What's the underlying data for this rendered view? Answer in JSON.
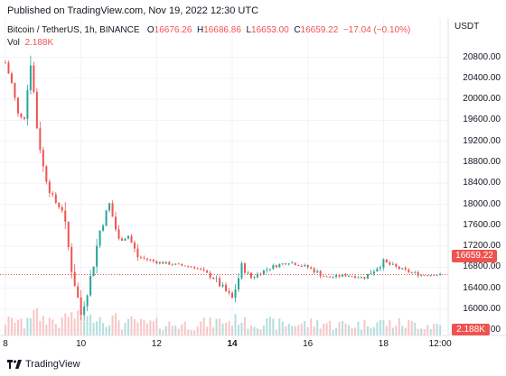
{
  "header": {
    "published": "Published on TradingView.com, Nov 19, 2022 12:30 UTC",
    "symbol": "Bitcoin / TetherUS, 1h, BINANCE",
    "o_label": "O",
    "o_value": "16676.26",
    "h_label": "H",
    "h_value": "16686.86",
    "l_label": "L",
    "l_value": "16653.00",
    "c_label": "C",
    "c_value": "16659.22",
    "change": "−17.04 (−0.10%)",
    "vol_label": "Vol",
    "vol_value": "2.188K"
  },
  "axis": {
    "currency": "USDT",
    "y_ticks": [
      "20800.00",
      "20400.00",
      "20000.00",
      "19600.00",
      "19200.00",
      "18800.00",
      "18400.00",
      "18000.00",
      "17600.00",
      "17200.00",
      "16800.00",
      "16400.00",
      "16000.00",
      "15600.00"
    ],
    "x_ticks": [
      {
        "label": "8",
        "bold": false
      },
      {
        "label": "10",
        "bold": false
      },
      {
        "label": "12",
        "bold": false
      },
      {
        "label": "14",
        "bold": true
      },
      {
        "label": "16",
        "bold": false
      },
      {
        "label": "18",
        "bold": false
      },
      {
        "label": "12:00",
        "bold": false
      }
    ]
  },
  "badges": {
    "price": "16659.22",
    "volume": "2.188K"
  },
  "footer": {
    "brand": "TradingView"
  },
  "colors": {
    "up": "#26a69a",
    "down": "#ef5350",
    "up_volume": "#b2dfdb",
    "down_volume": "#f7c6c5",
    "grid": "#f0f3fa"
  },
  "chart_data": {
    "type": "candlestick",
    "timeframe": "1h",
    "x_range": [
      "2022-11-08",
      "2022-11-19 12:30"
    ],
    "y_range": [
      15500,
      21000
    ],
    "grid": true,
    "current_price": 16659.22,
    "path": [
      [
        "2022-11-08 00:00",
        20700
      ],
      [
        "2022-11-08 04:00",
        20300
      ],
      [
        "2022-11-08 08:00",
        19700
      ],
      [
        "2022-11-08 12:00",
        19650
      ],
      [
        "2022-11-08 16:00",
        20750
      ],
      [
        "2022-11-08 20:00",
        19500
      ],
      [
        "2022-11-09 00:00",
        18700
      ],
      [
        "2022-11-09 06:00",
        18100
      ],
      [
        "2022-11-09 12:00",
        17900
      ],
      [
        "2022-11-09 18:00",
        16800
      ],
      [
        "2022-11-10 00:00",
        15900
      ],
      [
        "2022-11-10 06:00",
        16600
      ],
      [
        "2022-11-10 12:00",
        17500
      ],
      [
        "2022-11-10 18:00",
        18000
      ],
      [
        "2022-11-11 00:00",
        17300
      ],
      [
        "2022-11-11 06:00",
        17400
      ],
      [
        "2022-11-11 12:00",
        17000
      ],
      [
        "2022-11-12 00:00",
        16900
      ],
      [
        "2022-11-12 12:00",
        16850
      ],
      [
        "2022-11-13 00:00",
        16800
      ],
      [
        "2022-11-13 12:00",
        16600
      ],
      [
        "2022-11-14 00:00",
        16200
      ],
      [
        "2022-11-14 06:00",
        16800
      ],
      [
        "2022-11-14 12:00",
        16600
      ],
      [
        "2022-11-15 00:00",
        16800
      ],
      [
        "2022-11-15 12:00",
        16900
      ],
      [
        "2022-11-16 00:00",
        16800
      ],
      [
        "2022-11-16 12:00",
        16600
      ],
      [
        "2022-11-17 00:00",
        16650
      ],
      [
        "2022-11-17 12:00",
        16600
      ],
      [
        "2022-11-18 00:00",
        16900
      ],
      [
        "2022-11-18 12:00",
        16750
      ],
      [
        "2022-11-19 00:00",
        16650
      ],
      [
        "2022-11-19 12:00",
        16659
      ]
    ]
  }
}
